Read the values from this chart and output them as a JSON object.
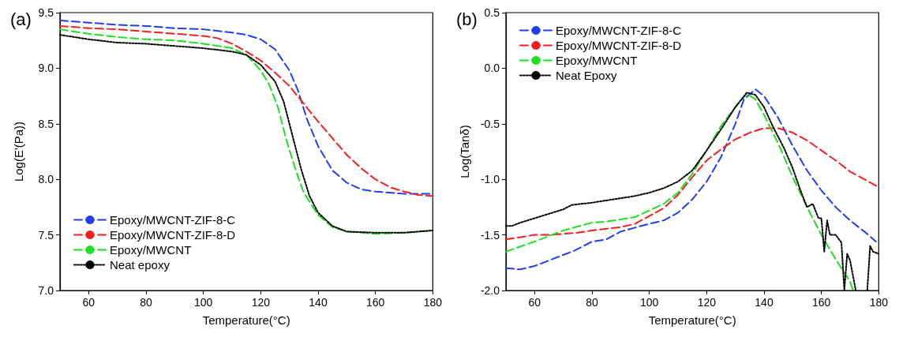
{
  "chart_data": [
    {
      "type": "line",
      "title": "(a)",
      "xlabel": "Temperature(°C)",
      "ylabel": "Log(E'(Pa))",
      "xlim": [
        50,
        180
      ],
      "xticks": [
        60,
        80,
        100,
        120,
        140,
        160,
        180
      ],
      "ylim": [
        7.0,
        9.5
      ],
      "yticks": [
        {
          "value": 7.0,
          "label": "7.0"
        },
        {
          "value": 7.5,
          "label": "7.5"
        },
        {
          "value": 8.0,
          "label": "8.0"
        },
        {
          "value": 8.5,
          "label": "8.5"
        },
        {
          "value": 9.0,
          "label": "9.0"
        },
        {
          "value": 9.5,
          "label": "9.5"
        }
      ],
      "grid": false,
      "legend": "bottom left",
      "marker": "none",
      "series": [
        {
          "name": "Epoxy/MWCNT-ZIF-8-C",
          "color": "#1f3ff5",
          "line_style": "dashed",
          "x": [
            50,
            60,
            70,
            80,
            90,
            100,
            110,
            115,
            120,
            125,
            130,
            133,
            136,
            140,
            145,
            150,
            155,
            160,
            170,
            180
          ],
          "values": [
            9.43,
            9.41,
            9.39,
            9.38,
            9.36,
            9.35,
            9.32,
            9.3,
            9.26,
            9.17,
            8.98,
            8.8,
            8.55,
            8.3,
            8.08,
            7.97,
            7.91,
            7.89,
            7.87,
            7.87
          ]
        },
        {
          "name": "Epoxy/MWCNT-ZIF-8-D",
          "color": "#f51f1f",
          "line_style": "dashed",
          "x": [
            50,
            60,
            70,
            80,
            90,
            100,
            105,
            110,
            115,
            120,
            125,
            130,
            135,
            140,
            145,
            150,
            155,
            160,
            165,
            170,
            175,
            180
          ],
          "values": [
            9.38,
            9.36,
            9.35,
            9.33,
            9.31,
            9.29,
            9.27,
            9.22,
            9.15,
            9.07,
            8.96,
            8.84,
            8.68,
            8.52,
            8.37,
            8.22,
            8.1,
            8.0,
            7.93,
            7.89,
            7.86,
            7.85
          ]
        },
        {
          "name": "Epoxy/MWCNT",
          "color": "#1fe01f",
          "line_style": "dashed",
          "x": [
            50,
            60,
            70,
            80,
            90,
            100,
            110,
            115,
            120,
            123,
            126,
            129,
            132,
            135,
            140,
            145,
            150,
            160,
            170,
            180
          ],
          "values": [
            9.35,
            9.31,
            9.28,
            9.26,
            9.25,
            9.22,
            9.18,
            9.12,
            8.98,
            8.85,
            8.65,
            8.35,
            8.1,
            7.88,
            7.68,
            7.57,
            7.53,
            7.51,
            7.52,
            7.54
          ]
        },
        {
          "name": "Neat epoxy",
          "color": "#000000",
          "line_style": "dotted",
          "x": [
            50,
            60,
            70,
            80,
            90,
            100,
            110,
            115,
            120,
            125,
            128,
            131,
            134,
            137,
            140,
            145,
            150,
            160,
            170,
            180
          ],
          "values": [
            9.3,
            9.26,
            9.23,
            9.22,
            9.2,
            9.18,
            9.15,
            9.12,
            9.03,
            8.88,
            8.7,
            8.4,
            8.1,
            7.85,
            7.7,
            7.58,
            7.53,
            7.52,
            7.52,
            7.54
          ]
        }
      ]
    },
    {
      "type": "line",
      "title": "(b)",
      "xlabel": "Temperature(°C)",
      "ylabel": "Log(Tanδ)",
      "xlim": [
        50,
        180
      ],
      "xticks": [
        60,
        80,
        100,
        120,
        140,
        160,
        180
      ],
      "ylim": [
        -2.0,
        0.5
      ],
      "yticks": [
        {
          "value": -2.0,
          "label": "-2.0"
        },
        {
          "value": -1.5,
          "label": "-1.5"
        },
        {
          "value": -1.0,
          "label": "-1.0"
        },
        {
          "value": -0.5,
          "label": "-0.5"
        },
        {
          "value": 0.0,
          "label": "0.0"
        },
        {
          "value": 0.5,
          "label": "0.5"
        }
      ],
      "grid": false,
      "legend": "top left",
      "marker": "none",
      "series": [
        {
          "name": "Epoxy/MWCNT-ZIF-8-C",
          "color": "#1f3ff5",
          "line_style": "dashed",
          "x": [
            50,
            55,
            60,
            70,
            74,
            80,
            85,
            90,
            100,
            105,
            110,
            115,
            120,
            125,
            130,
            133,
            137,
            140,
            145,
            150,
            155,
            160,
            165,
            170,
            175,
            179
          ],
          "values": [
            -1.8,
            -1.81,
            -1.78,
            -1.68,
            -1.64,
            -1.56,
            -1.54,
            -1.47,
            -1.4,
            -1.37,
            -1.3,
            -1.18,
            -1.02,
            -0.8,
            -0.5,
            -0.28,
            -0.19,
            -0.25,
            -0.45,
            -0.7,
            -0.92,
            -1.1,
            -1.25,
            -1.37,
            -1.47,
            -1.56
          ]
        },
        {
          "name": "Epoxy/MWCNT-ZIF-8-D",
          "color": "#f51f1f",
          "line_style": "dashed",
          "x": [
            50,
            55,
            60,
            65,
            70,
            75,
            80,
            90,
            95,
            100,
            105,
            110,
            115,
            120,
            125,
            130,
            135,
            140,
            145,
            150,
            155,
            160,
            165,
            170,
            175,
            180
          ],
          "values": [
            -1.54,
            -1.52,
            -1.5,
            -1.5,
            -1.49,
            -1.48,
            -1.46,
            -1.43,
            -1.4,
            -1.33,
            -1.26,
            -1.14,
            -0.98,
            -0.83,
            -0.73,
            -0.64,
            -0.58,
            -0.54,
            -0.54,
            -0.58,
            -0.65,
            -0.74,
            -0.83,
            -0.93,
            -1.0,
            -1.07
          ]
        },
        {
          "name": "Epoxy/MWCNT",
          "color": "#1fe01f",
          "line_style": "dashed",
          "x": [
            50,
            60,
            70,
            80,
            85,
            90,
            95,
            100,
            105,
            110,
            115,
            120,
            125,
            130,
            134,
            137,
            140,
            145,
            150,
            155,
            160,
            165,
            170,
            171
          ],
          "values": [
            -1.65,
            -1.56,
            -1.46,
            -1.39,
            -1.38,
            -1.36,
            -1.34,
            -1.28,
            -1.22,
            -1.12,
            -0.95,
            -0.74,
            -0.52,
            -0.35,
            -0.23,
            -0.28,
            -0.42,
            -0.68,
            -0.98,
            -1.25,
            -1.5,
            -1.72,
            -1.92,
            -2.0
          ]
        },
        {
          "name": "Neat Epoxy",
          "color": "#000000",
          "line_style": "dotted",
          "x": [
            50,
            52,
            55,
            60,
            65,
            70,
            73,
            80,
            85,
            90,
            95,
            100,
            105,
            110,
            115,
            120,
            125,
            130,
            134,
            137,
            140,
            143,
            147,
            150,
            153,
            155,
            157,
            159,
            160,
            161,
            162,
            163,
            165,
            167,
            168,
            169,
            170,
            172,
            174,
            176,
            177,
            178,
            180
          ],
          "values": [
            -1.42,
            -1.42,
            -1.39,
            -1.35,
            -1.31,
            -1.27,
            -1.23,
            -1.21,
            -1.19,
            -1.17,
            -1.15,
            -1.12,
            -1.08,
            -1.02,
            -0.92,
            -0.74,
            -0.55,
            -0.35,
            -0.22,
            -0.24,
            -0.35,
            -0.52,
            -0.72,
            -0.9,
            -1.12,
            -1.25,
            -1.22,
            -1.35,
            -1.35,
            -1.65,
            -1.37,
            -1.5,
            -1.5,
            -1.57,
            -2.0,
            -1.67,
            -1.73,
            -2.0,
            null,
            -2.0,
            -1.6,
            -1.65,
            -1.67
          ]
        }
      ]
    }
  ]
}
